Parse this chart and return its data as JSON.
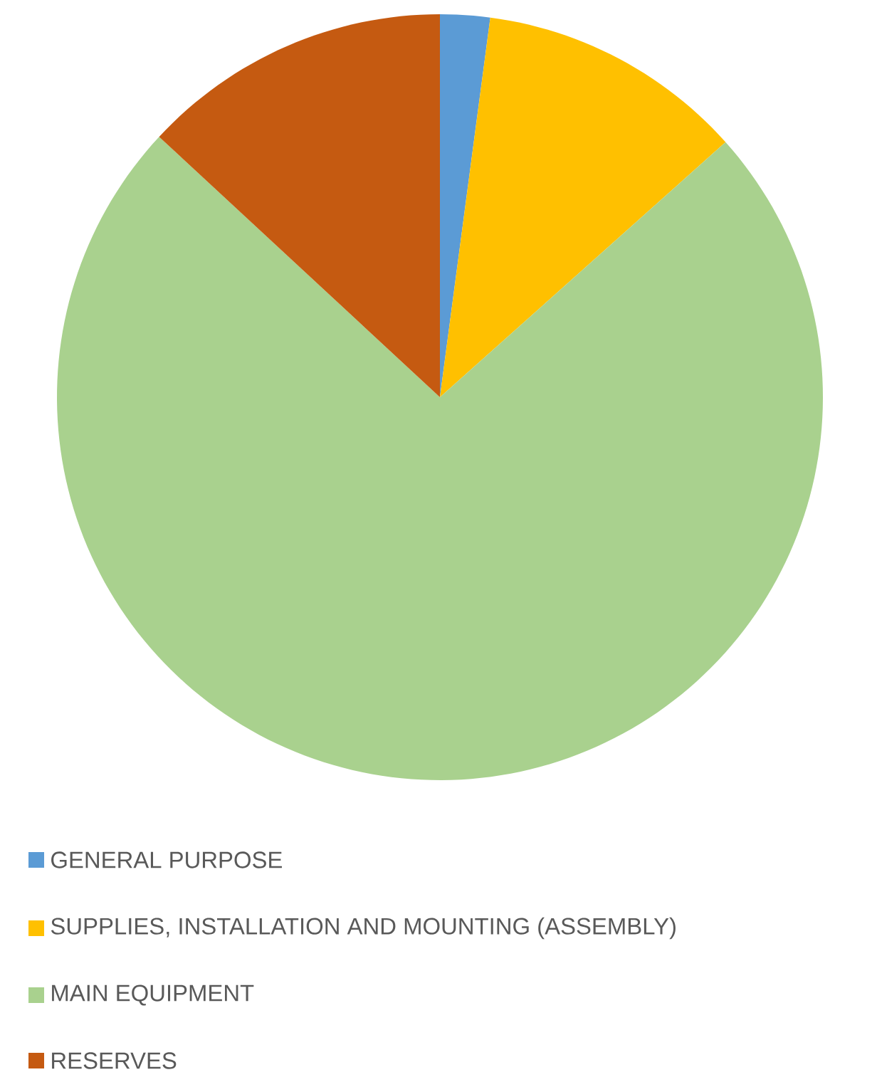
{
  "chart_data": {
    "type": "pie",
    "categories": [
      "GENERAL PURPOSE",
      "SUPPLIES, INSTALLATION AND MOUNTING (ASSEMBLY)",
      "MAIN EQUIPMENT",
      "RESERVES"
    ],
    "values": [
      2.1,
      11.3,
      73.5,
      13.1
    ],
    "colors": [
      "#5b9bd5",
      "#ffc000",
      "#a9d18e",
      "#c55a11"
    ],
    "legend": "bottom"
  }
}
